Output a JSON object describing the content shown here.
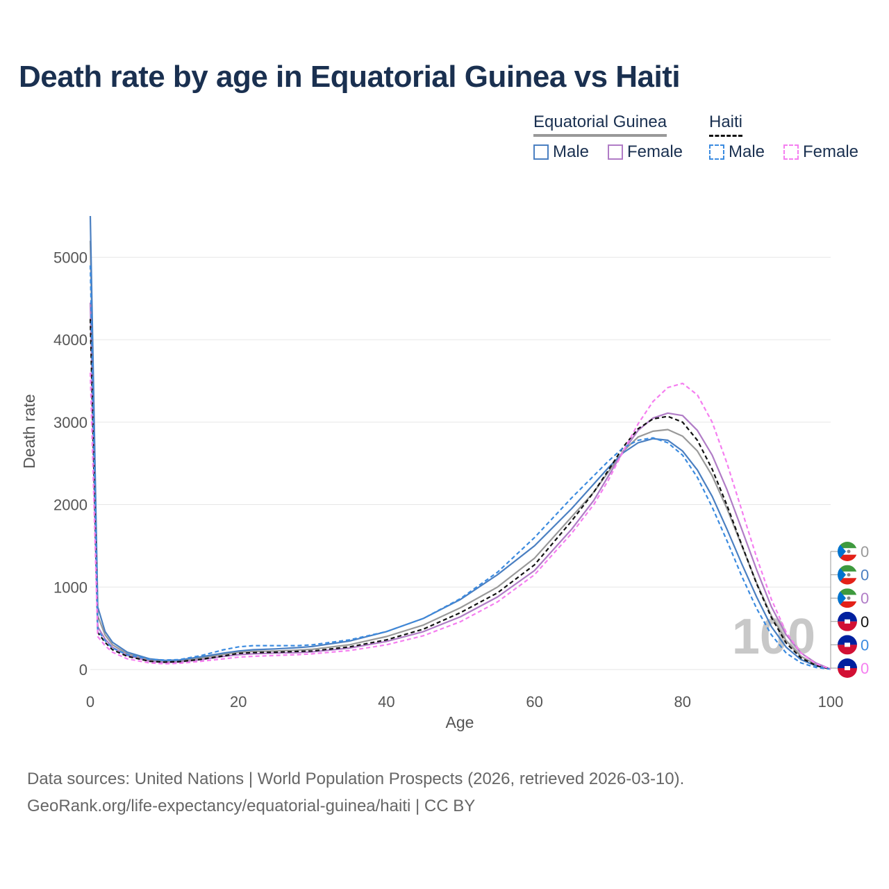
{
  "title": "Death rate by age in Equatorial Guinea vs Haiti",
  "legend": {
    "countries": [
      {
        "name": "Equatorial Guinea",
        "line_style": "solid",
        "color": "#999999"
      },
      {
        "name": "Haiti",
        "line_style": "dashed",
        "color": "#111111"
      }
    ],
    "items": [
      {
        "label": "Male",
        "country": "Equatorial Guinea",
        "color": "#4a7fc1",
        "style": "solid"
      },
      {
        "label": "Female",
        "country": "Equatorial Guinea",
        "color": "#b07cc6",
        "style": "solid"
      },
      {
        "label": "Male",
        "country": "Haiti",
        "color": "#3b8be0",
        "style": "dashed"
      },
      {
        "label": "Female",
        "country": "Haiti",
        "color": "#f57ef0",
        "style": "dashed"
      }
    ]
  },
  "chart_data": {
    "type": "line",
    "xlabel": "Age",
    "ylabel": "Death rate",
    "xlim": [
      0,
      100
    ],
    "ylim": [
      0,
      5500
    ],
    "xticks": [
      0,
      20,
      40,
      60,
      80,
      100
    ],
    "yticks": [
      0,
      1000,
      2000,
      3000,
      4000,
      5000
    ],
    "grid": true,
    "watermark": "100",
    "x": [
      0,
      1,
      2,
      3,
      5,
      8,
      10,
      12,
      15,
      18,
      20,
      22,
      25,
      28,
      30,
      35,
      40,
      45,
      50,
      55,
      60,
      65,
      68,
      70,
      72,
      74,
      76,
      78,
      80,
      82,
      84,
      86,
      88,
      90,
      92,
      94,
      96,
      98,
      100
    ],
    "series": [
      {
        "name": "Equatorial Guinea Total",
        "color": "#999999",
        "style": "solid",
        "end_label": "0",
        "values": [
          5200,
          650,
          420,
          300,
          190,
          115,
          100,
          105,
          140,
          185,
          210,
          220,
          225,
          235,
          245,
          300,
          400,
          540,
          750,
          1000,
          1350,
          1850,
          2150,
          2400,
          2650,
          2820,
          2890,
          2910,
          2830,
          2650,
          2350,
          1950,
          1500,
          1050,
          650,
          350,
          160,
          60,
          5
        ]
      },
      {
        "name": "Equatorial Guinea Male",
        "color": "#4a7fc1",
        "style": "solid",
        "end_label": "0",
        "values": [
          5500,
          760,
          460,
          330,
          210,
          130,
          110,
          115,
          155,
          200,
          225,
          240,
          250,
          265,
          280,
          345,
          460,
          620,
          850,
          1150,
          1500,
          1950,
          2250,
          2450,
          2630,
          2750,
          2800,
          2780,
          2650,
          2420,
          2100,
          1700,
          1280,
          880,
          520,
          270,
          120,
          45,
          5
        ]
      },
      {
        "name": "Equatorial Guinea Female",
        "color": "#b07cc6",
        "style": "solid",
        "end_label": "0",
        "values": [
          4450,
          520,
          370,
          270,
          170,
          100,
          85,
          90,
          120,
          160,
          180,
          190,
          200,
          205,
          215,
          260,
          340,
          460,
          640,
          880,
          1200,
          1700,
          2050,
          2350,
          2650,
          2900,
          3050,
          3110,
          3080,
          2900,
          2600,
          2180,
          1700,
          1210,
          760,
          420,
          200,
          80,
          5
        ]
      },
      {
        "name": "Haiti Total",
        "color": "#111111",
        "style": "dashed",
        "end_label": "0",
        "values": [
          4250,
          450,
          330,
          240,
          160,
          100,
          90,
          95,
          125,
          165,
          195,
          205,
          210,
          220,
          225,
          275,
          360,
          490,
          690,
          930,
          1270,
          1800,
          2150,
          2420,
          2700,
          2920,
          3040,
          3070,
          3000,
          2780,
          2430,
          1990,
          1510,
          1040,
          630,
          320,
          140,
          50,
          5
        ]
      },
      {
        "name": "Haiti Male",
        "color": "#3b8be0",
        "style": "dashed",
        "end_label": "0",
        "values": [
          4900,
          480,
          350,
          260,
          180,
          125,
          115,
          120,
          170,
          240,
          275,
          290,
          290,
          290,
          300,
          360,
          460,
          620,
          860,
          1180,
          1600,
          2080,
          2350,
          2530,
          2690,
          2780,
          2810,
          2750,
          2600,
          2330,
          1970,
          1560,
          1130,
          740,
          420,
          200,
          80,
          25,
          5
        ]
      },
      {
        "name": "Haiti Female",
        "color": "#f57ef0",
        "style": "dashed",
        "end_label": "0",
        "values": [
          3600,
          400,
          290,
          210,
          130,
          80,
          70,
          75,
          100,
          130,
          150,
          160,
          170,
          180,
          190,
          230,
          300,
          410,
          580,
          820,
          1150,
          1650,
          2000,
          2300,
          2650,
          2980,
          3250,
          3420,
          3470,
          3330,
          3000,
          2500,
          1930,
          1360,
          850,
          450,
          200,
          70,
          5
        ]
      }
    ]
  },
  "source": {
    "line1": "Data sources: United Nations | World Population Prospects (2026, retrieved 2026-03-10).",
    "line2": "GeoRank.org/life-expectancy/equatorial-guinea/haiti | CC BY"
  }
}
